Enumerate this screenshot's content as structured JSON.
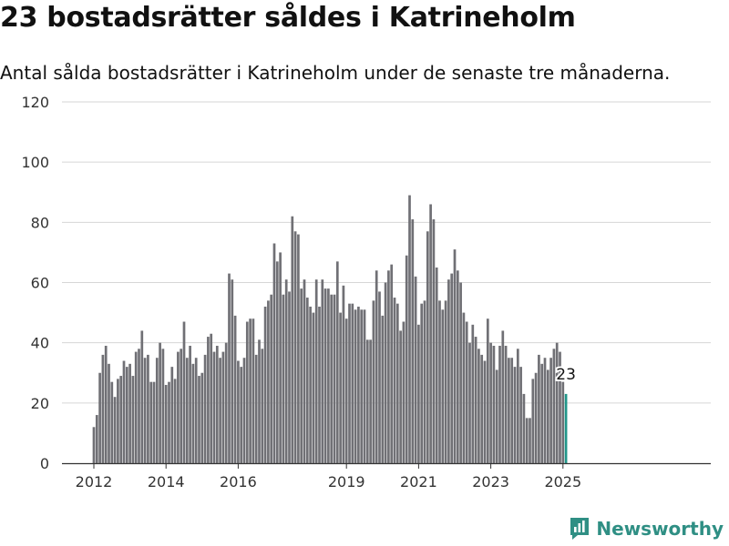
{
  "title": "23 bostadsrätter såldes i Katrineholm",
  "subtitle": "Antal sålda bostadsrätter i Katrineholm under de senaste tre månaderna.",
  "brand": {
    "name": "Newsworthy",
    "color": "#2f8f84"
  },
  "colors": {
    "bars": "#707075",
    "highlight": "#21968a",
    "grid": "#d6d6d6",
    "axis": "#333333"
  },
  "chart_data": {
    "type": "bar",
    "y_ticks": [
      0,
      20,
      40,
      60,
      80,
      100,
      120
    ],
    "ylim": [
      0,
      120
    ],
    "x_ticks": [
      "2012",
      "2014",
      "2016",
      "2019",
      "2021",
      "2023",
      "2025"
    ],
    "highlight_label": "23",
    "start": "2012-01",
    "series": [
      {
        "values": [
          12,
          16,
          30,
          36,
          39,
          33,
          27,
          22,
          28,
          29,
          34,
          32,
          33,
          29,
          37,
          38,
          44,
          35,
          36,
          27,
          27,
          35,
          40,
          38,
          26,
          27,
          32,
          28,
          37,
          38,
          47,
          35,
          39,
          33,
          35,
          29,
          30,
          36,
          42,
          43,
          37,
          39,
          35,
          37,
          40,
          63,
          61,
          49,
          34,
          32,
          35,
          47,
          48,
          48,
          36,
          41,
          38,
          52,
          54,
          56,
          73,
          67,
          70,
          56,
          61,
          57,
          82,
          77,
          76,
          58,
          61,
          55,
          52,
          50,
          61,
          52,
          61,
          58,
          58,
          56,
          56,
          67,
          50,
          59,
          48,
          53,
          53,
          51,
          52,
          51,
          51,
          41,
          41,
          54,
          64,
          57,
          49,
          60,
          64,
          66,
          55,
          53,
          44,
          47,
          69,
          89,
          81,
          62,
          46,
          53,
          54,
          77,
          86,
          81,
          65,
          54,
          51,
          54,
          61,
          63,
          71,
          64,
          60,
          50,
          47,
          40,
          46,
          42,
          38,
          36,
          34,
          48,
          40,
          39,
          31,
          39,
          44,
          39,
          35,
          35,
          32,
          38,
          32,
          23,
          15,
          15,
          28,
          30,
          36,
          33,
          35,
          31,
          35,
          38,
          40,
          37,
          27,
          23
        ]
      }
    ]
  }
}
